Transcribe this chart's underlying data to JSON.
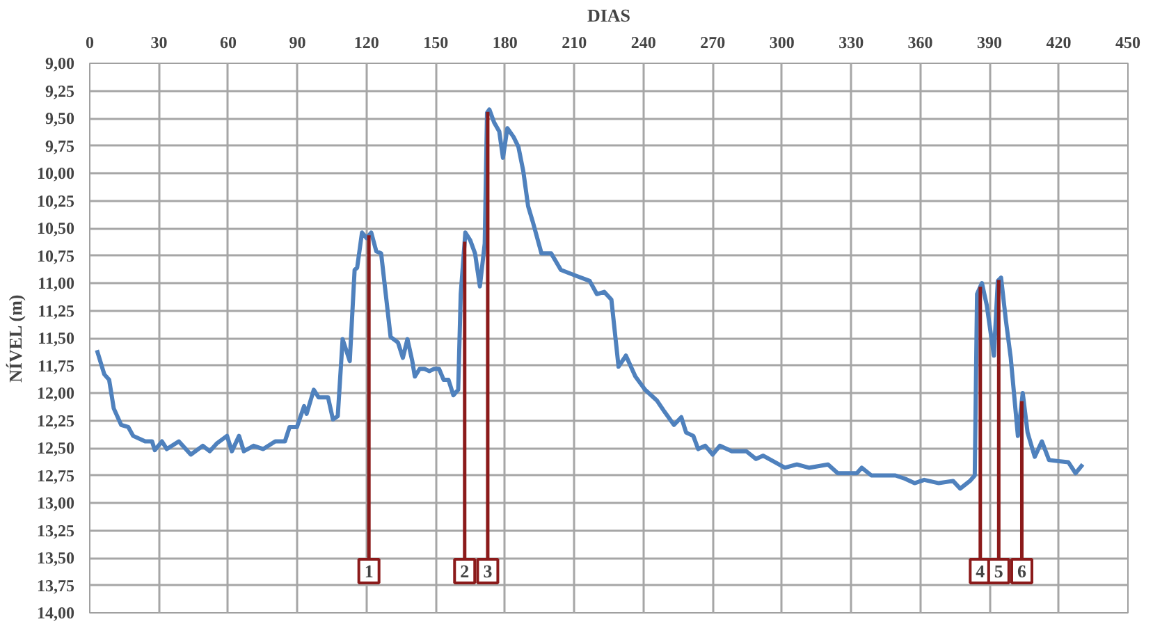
{
  "chart_data": {
    "type": "line",
    "xlabel": "DIAS",
    "ylabel": "NÍVEL (m)",
    "grid": true,
    "marker": "none",
    "line_style": "solid",
    "xlim": [
      0,
      450
    ],
    "xticks": [
      0,
      30,
      60,
      90,
      120,
      150,
      180,
      210,
      240,
      270,
      300,
      330,
      360,
      390,
      420,
      450
    ],
    "ylim": [
      14.0,
      9.0
    ],
    "yticks": [
      {
        "value": 9.0,
        "label": "9,00"
      },
      {
        "value": 9.25,
        "label": "9,25"
      },
      {
        "value": 9.5,
        "label": "9,50"
      },
      {
        "value": 9.75,
        "label": "9,75"
      },
      {
        "value": 10.0,
        "label": "10,00"
      },
      {
        "value": 10.25,
        "label": "10,25"
      },
      {
        "value": 10.5,
        "label": "10,50"
      },
      {
        "value": 10.75,
        "label": "10,75"
      },
      {
        "value": 11.0,
        "label": "11,00"
      },
      {
        "value": 11.25,
        "label": "11,25"
      },
      {
        "value": 11.5,
        "label": "11,50"
      },
      {
        "value": 11.75,
        "label": "11,75"
      },
      {
        "value": 12.0,
        "label": "12,00"
      },
      {
        "value": 12.25,
        "label": "12,25"
      },
      {
        "value": 12.5,
        "label": "12,50"
      },
      {
        "value": 12.75,
        "label": "12,75"
      },
      {
        "value": 13.0,
        "label": "13,00"
      },
      {
        "value": 13.25,
        "label": "13,25"
      },
      {
        "value": 13.5,
        "label": "13,50"
      },
      {
        "value": 13.75,
        "label": "13,75"
      },
      {
        "value": 14.0,
        "label": "14,00"
      }
    ],
    "series": [
      {
        "color": "#4f81bd",
        "x": [
          3.1,
          6.3,
          8.4,
          10.4,
          13.6,
          16.7,
          18.8,
          24,
          27,
          28.2,
          31.3,
          33.4,
          38.6,
          43.8,
          49,
          52,
          55,
          59.5,
          61.6,
          64.7,
          66.8,
          71,
          75.2,
          80.4,
          84.6,
          86.6,
          89.8,
          92.9,
          94,
          97.1,
          99.2,
          103.3,
          105.4,
          107.5,
          109.6,
          112.7,
          114.8,
          115.9,
          118,
          120,
          122,
          124.2,
          126.3,
          128.3,
          130.4,
          133.6,
          135.7,
          137.7,
          139.8,
          140.9,
          143,
          145.1,
          147.2,
          149.3,
          151.4,
          153.4,
          155.5,
          157.6,
          159.7,
          160.8,
          162.8,
          164.9,
          167,
          169.1,
          171.2,
          172.2,
          173.2,
          175.3,
          177.5,
          179.1,
          181,
          183.7,
          185.8,
          187.9,
          190,
          192,
          195.8,
          200,
          204.2,
          210.4,
          216.7,
          219.8,
          223,
          226.1,
          229.2,
          232.4,
          236.5,
          240.7,
          245.9,
          249.1,
          253.2,
          256.4,
          258.5,
          261.6,
          263.7,
          266.8,
          270,
          273.1,
          278.3,
          284.6,
          288.8,
          291.9,
          297.1,
          301.3,
          306.5,
          311.7,
          320,
          324.2,
          332.5,
          334.6,
          338.8,
          349.2,
          353.4,
          357.5,
          361.7,
          368,
          374.2,
          377.3,
          381.5,
          383.6,
          384.6,
          386.7,
          388.8,
          391.9,
          393.6,
          395,
          397.1,
          399.2,
          402.3,
          404.4,
          406.5,
          409.6,
          412.7,
          415.8,
          424.2,
          427.3,
          430.4
        ],
        "values": [
          11.61,
          11.83,
          11.88,
          12.14,
          12.29,
          12.31,
          12.39,
          12.44,
          12.44,
          12.52,
          12.44,
          12.51,
          12.44,
          12.56,
          12.48,
          12.53,
          12.46,
          12.39,
          12.53,
          12.39,
          12.53,
          12.48,
          12.51,
          12.44,
          12.44,
          12.31,
          12.31,
          12.12,
          12.19,
          11.97,
          12.04,
          12.04,
          12.24,
          12.21,
          11.51,
          11.71,
          10.88,
          10.86,
          10.54,
          10.59,
          10.54,
          10.71,
          10.73,
          11.1,
          11.49,
          11.54,
          11.68,
          11.51,
          11.71,
          11.85,
          11.78,
          11.78,
          11.8,
          11.78,
          11.78,
          11.88,
          11.88,
          12.02,
          11.97,
          11.1,
          10.54,
          10.61,
          10.73,
          11.03,
          10.64,
          9.45,
          9.42,
          9.54,
          9.62,
          9.86,
          9.59,
          9.67,
          9.76,
          9.98,
          10.3,
          10.44,
          10.73,
          10.73,
          10.88,
          10.93,
          10.98,
          11.1,
          11.08,
          11.15,
          11.76,
          11.66,
          11.85,
          11.97,
          12.07,
          12.17,
          12.29,
          12.22,
          12.36,
          12.39,
          12.51,
          12.48,
          12.56,
          12.48,
          12.53,
          12.53,
          12.6,
          12.57,
          12.63,
          12.68,
          12.65,
          12.68,
          12.65,
          12.73,
          12.73,
          12.68,
          12.75,
          12.75,
          12.78,
          12.82,
          12.79,
          12.82,
          12.8,
          12.87,
          12.8,
          12.75,
          11.1,
          11.0,
          11.2,
          11.66,
          10.98,
          10.95,
          11.34,
          11.68,
          12.39,
          12.0,
          12.36,
          12.58,
          12.44,
          12.61,
          12.63,
          12.73,
          12.65
        ]
      }
    ],
    "ref_lines": [
      {
        "axis": "x",
        "value": 121,
        "color": "#8b1a1a"
      },
      {
        "axis": "x",
        "value": 162.5,
        "color": "#8b1a1a"
      },
      {
        "axis": "x",
        "value": 172.5,
        "color": "#8b1a1a"
      },
      {
        "axis": "x",
        "value": 386,
        "color": "#8b1a1a"
      },
      {
        "axis": "x",
        "value": 394,
        "color": "#8b1a1a"
      },
      {
        "axis": "x",
        "value": 404,
        "color": "#8b1a1a"
      }
    ],
    "annotations": [
      {
        "text": "1",
        "x": 121
      },
      {
        "text": "2",
        "x": 162.5
      },
      {
        "text": "3",
        "x": 172.5
      },
      {
        "text": "4",
        "x": 386
      },
      {
        "text": "5",
        "x": 394
      },
      {
        "text": "6",
        "x": 404
      }
    ]
  }
}
